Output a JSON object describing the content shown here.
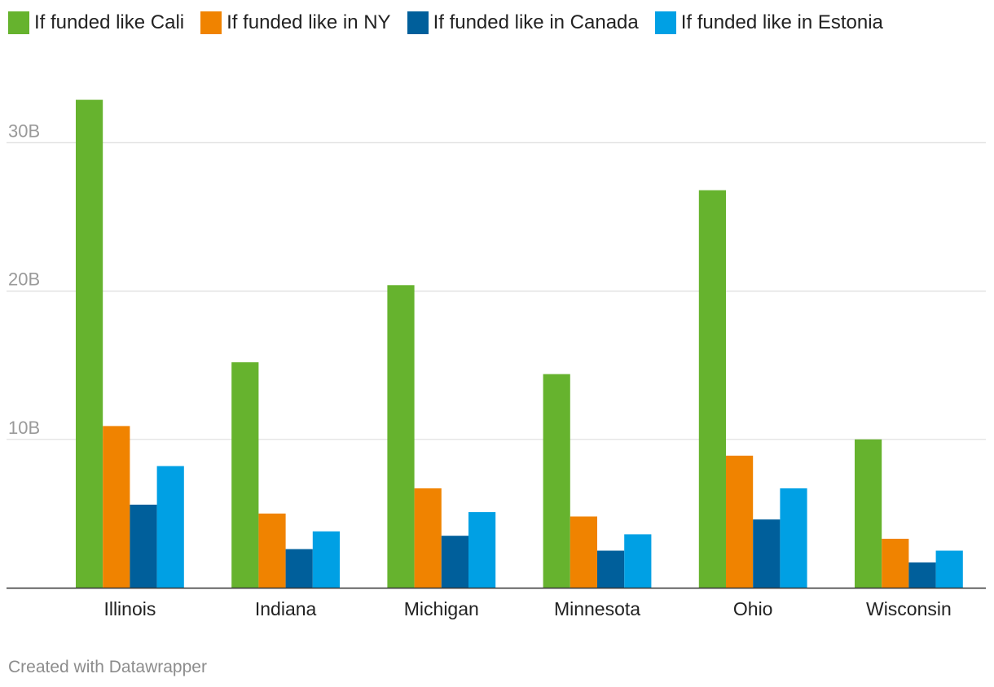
{
  "chart_data": {
    "type": "bar",
    "categories": [
      "Illinois",
      "Indiana",
      "Michigan",
      "Minnesota",
      "Ohio",
      "Wisconsin"
    ],
    "series": [
      {
        "name": "If funded like Cali",
        "color": "#66b32e",
        "values": [
          32.9,
          15.2,
          20.4,
          14.4,
          26.8,
          10.0
        ]
      },
      {
        "name": "If funded like in NY",
        "color": "#f08300",
        "values": [
          10.9,
          5.0,
          6.7,
          4.8,
          8.9,
          3.3
        ]
      },
      {
        "name": "If funded like in Canada",
        "color": "#005f9b",
        "values": [
          5.6,
          2.6,
          3.5,
          2.5,
          4.6,
          1.7
        ]
      },
      {
        "name": "If funded like in Estonia",
        "color": "#00a0e4",
        "values": [
          8.2,
          3.8,
          5.1,
          3.6,
          6.7,
          2.5
        ]
      }
    ],
    "yticks": [
      {
        "value": 10,
        "label": "10B"
      },
      {
        "value": 20,
        "label": "20B"
      },
      {
        "value": 30,
        "label": "30B"
      }
    ],
    "ylim": [
      0,
      35
    ],
    "grid": true,
    "legend_position": "top-left",
    "xlabel": "",
    "ylabel": ""
  },
  "footer": {
    "credit": "Created with Datawrapper"
  }
}
